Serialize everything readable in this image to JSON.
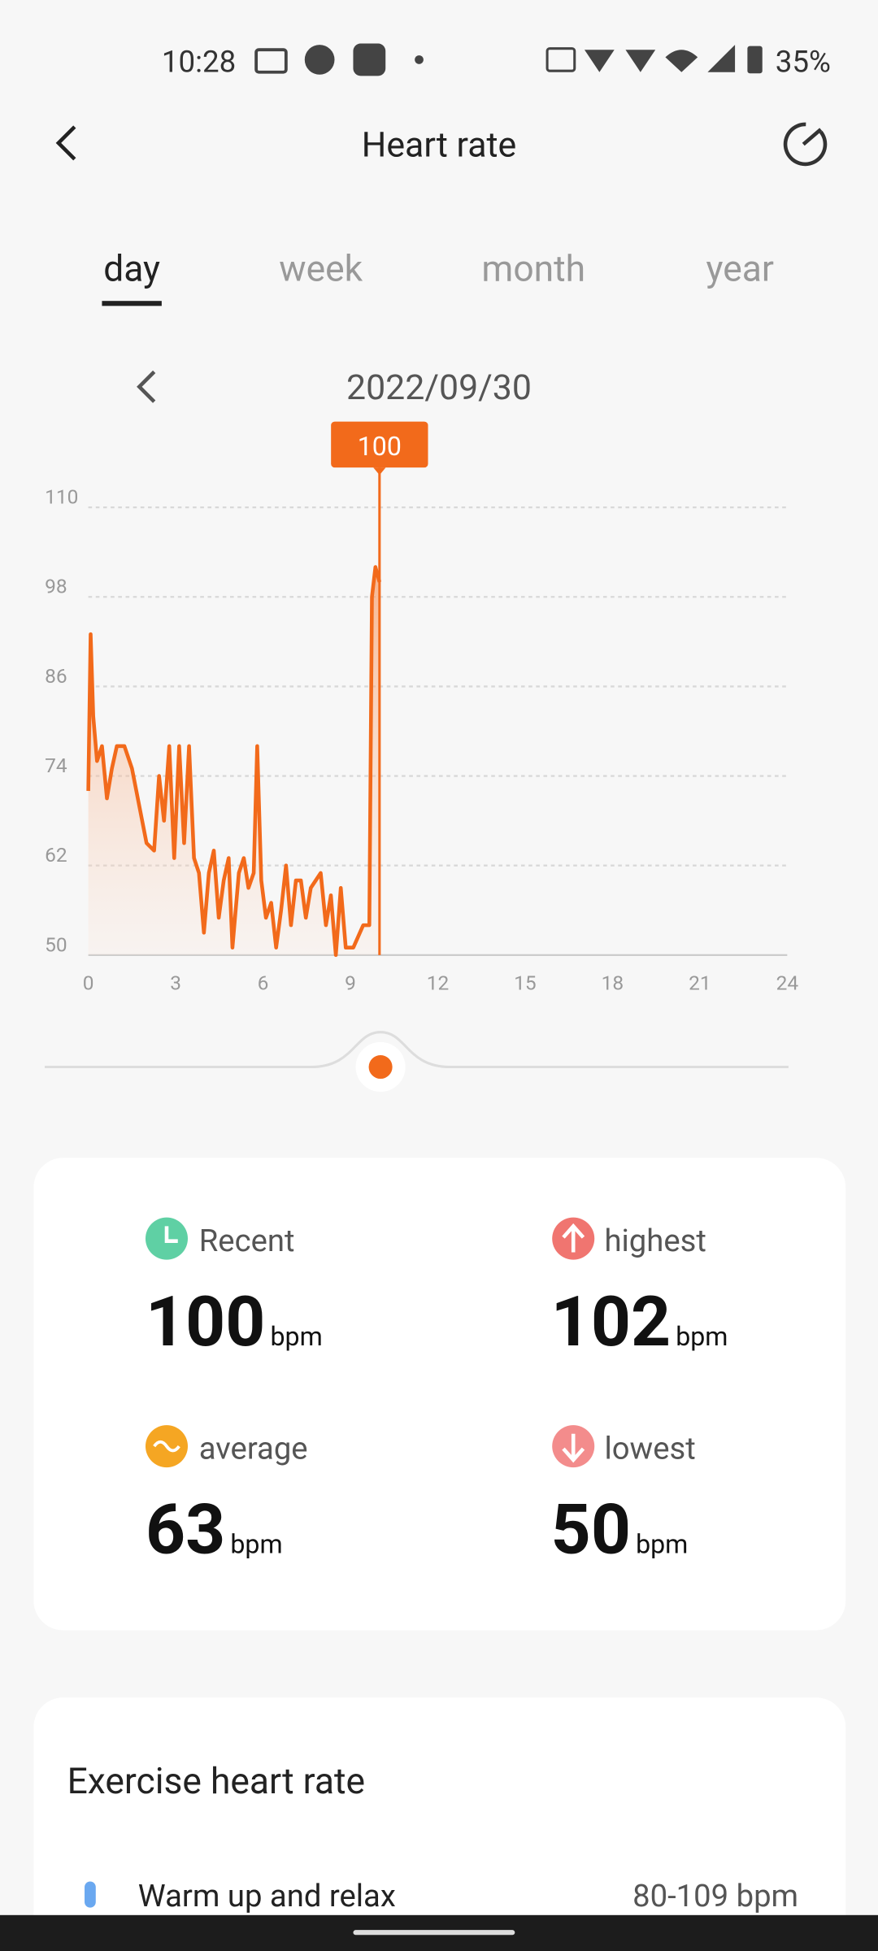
{
  "status_bar": {
    "time": "10:28",
    "battery": "35%"
  },
  "header": {
    "title": "Heart rate"
  },
  "tabs": [
    "day",
    "week",
    "month",
    "year"
  ],
  "date": "2022/09/30",
  "chart_data": {
    "type": "line",
    "x": [
      0,
      0.08,
      0.17,
      0.3,
      0.47,
      0.64,
      0.81,
      0.98,
      1.24,
      1.5,
      1.75,
      2.0,
      2.26,
      2.43,
      2.6,
      2.78,
      2.95,
      3.12,
      3.29,
      3.46,
      3.63,
      3.8,
      3.97,
      4.14,
      4.31,
      4.48,
      4.65,
      4.82,
      4.95,
      5.17,
      5.34,
      5.5,
      5.68,
      5.8,
      5.94,
      6.1,
      6.28,
      6.45,
      6.62,
      6.79,
      6.96,
      7.13,
      7.3,
      7.47,
      7.64,
      7.81,
      7.98,
      8.16,
      8.33,
      8.5,
      8.67,
      8.84,
      9.1,
      9.44,
      9.65,
      9.74,
      9.86,
      10.0
    ],
    "values": [
      72,
      93,
      82,
      76,
      78,
      71,
      75,
      78,
      78,
      75,
      70,
      65,
      64,
      74,
      68,
      78,
      63,
      78,
      65,
      78,
      63,
      61,
      53,
      61,
      64,
      55,
      60,
      63,
      51,
      61,
      63,
      59,
      61,
      78,
      60,
      55,
      57,
      51,
      56,
      62,
      54,
      60,
      60,
      55,
      59,
      60,
      61,
      54,
      58,
      50,
      59,
      51,
      51,
      54,
      54,
      98,
      102,
      100
    ],
    "color": "#f26a1b",
    "xlim": [
      0,
      24
    ],
    "xticks": [
      0,
      3,
      6,
      9,
      12,
      15,
      18,
      21,
      24
    ],
    "ylim": [
      50,
      110
    ],
    "yticks": [
      50,
      62,
      74,
      86,
      98,
      110
    ],
    "grid": true,
    "cursor": {
      "x": 10.0,
      "value": 100
    }
  },
  "stats": [
    {
      "label": "Recent",
      "value": 100,
      "unit": "bpm"
    },
    {
      "label": "highest",
      "value": 102,
      "unit": "bpm"
    },
    {
      "label": "average",
      "value": 63,
      "unit": "bpm"
    },
    {
      "label": "lowest",
      "value": 50,
      "unit": "bpm"
    }
  ],
  "exercise": {
    "title": "Exercise heart rate",
    "zones": [
      {
        "name": "Warm up and relax",
        "range": "80-109 bpm"
      }
    ]
  }
}
